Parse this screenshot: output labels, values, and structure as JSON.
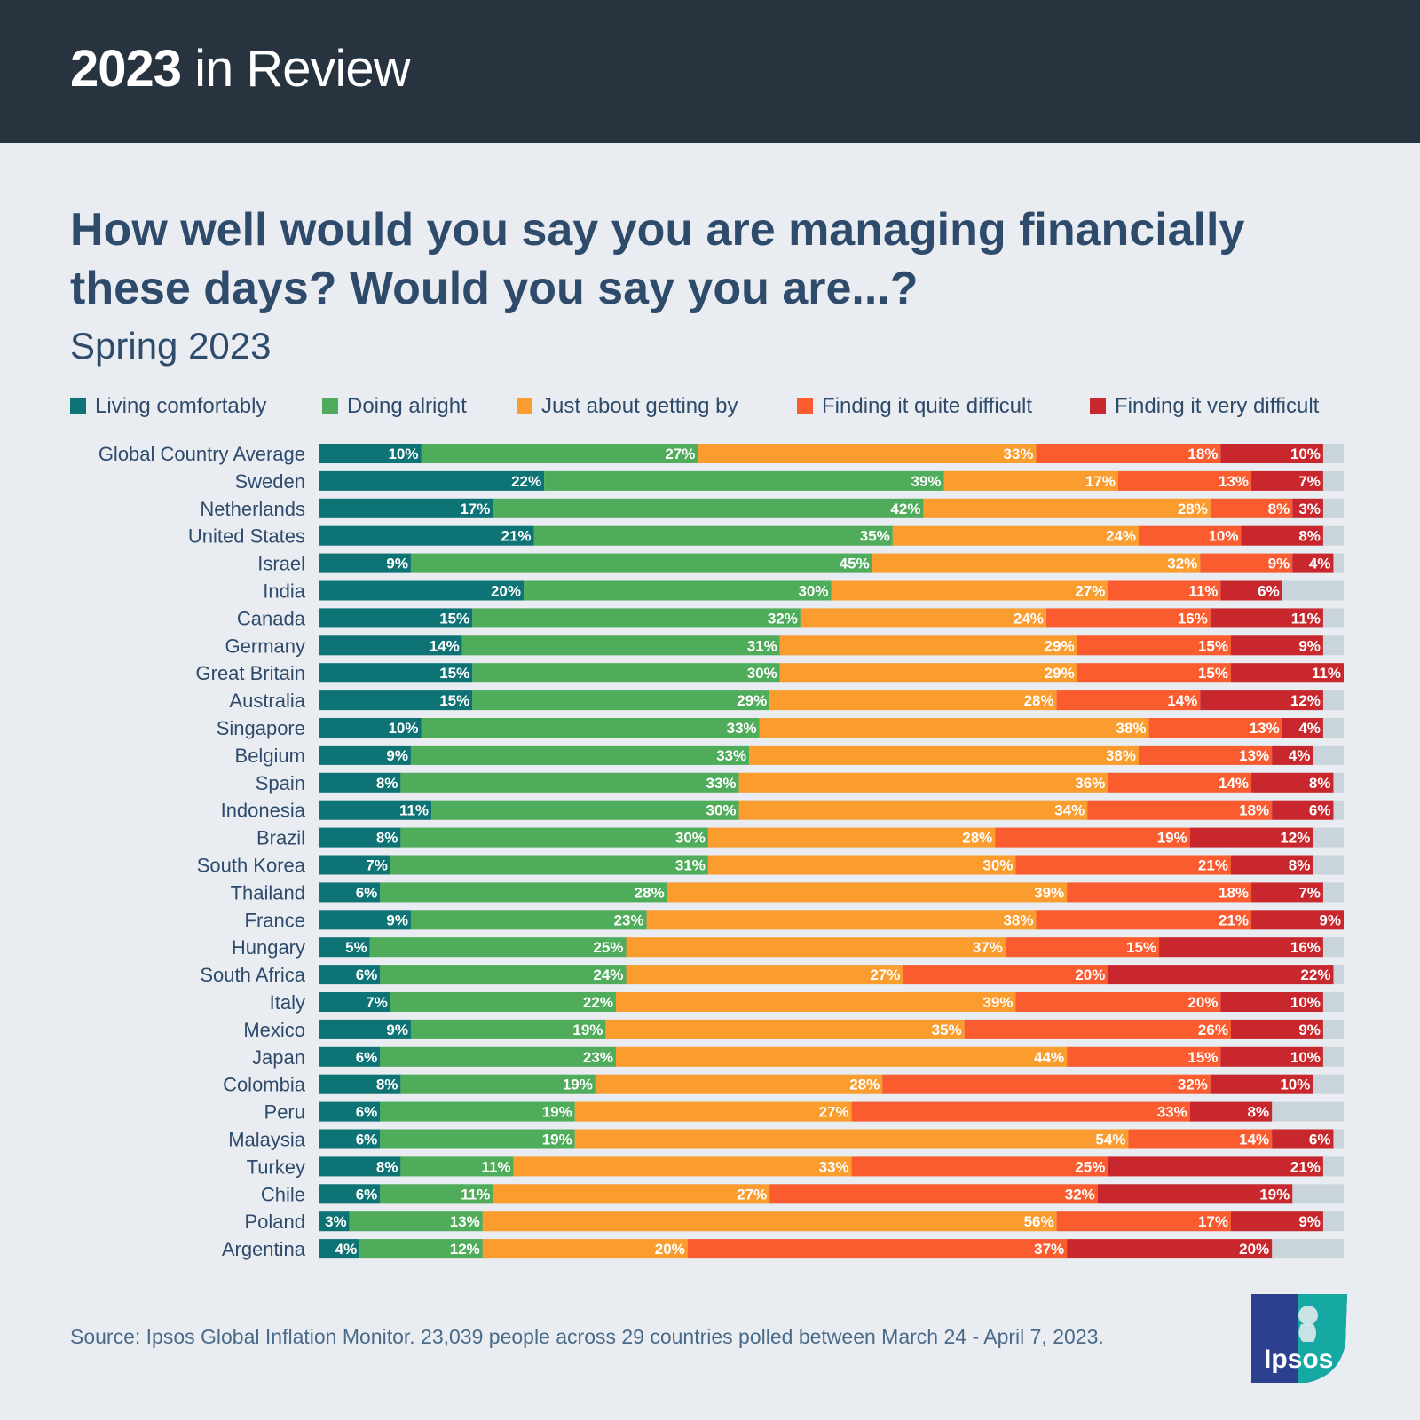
{
  "header": {
    "title_bold": "2023",
    "title_rest": " in Review"
  },
  "question": "How well would you say you are managing financially these days? Would you say you are...?",
  "subtitle": "Spring 2023",
  "source": "Source: Ipsos Global Inflation Monitor. 23,039 people across 29 countries polled between March 24 - April 7, 2023.",
  "logo_text": "Ipsos",
  "colors": {
    "banner_bg": "#283340",
    "page_bg": "#e9edf1",
    "remainder": "#cad4db",
    "text_dark": "#2f4b6c"
  },
  "legend": [
    {
      "label": "Living comfortably",
      "color": "#0e7374"
    },
    {
      "label": "Doing alright",
      "color": "#4fac5b"
    },
    {
      "label": "Just about getting by",
      "color": "#fb9c2f"
    },
    {
      "label": "Finding it quite difficult",
      "color": "#fa5b2f"
    },
    {
      "label": "Finding it very difficult",
      "color": "#c8282d"
    }
  ],
  "chart_data": {
    "type": "bar",
    "orientation": "horizontal",
    "stacked": true,
    "unit": "%",
    "xlim": [
      0,
      100
    ],
    "categories": [
      "Global Country Average",
      "Sweden",
      "Netherlands",
      "United States",
      "Israel",
      "India",
      "Canada",
      "Germany",
      "Great Britain",
      "Australia",
      "Singapore",
      "Belgium",
      "Spain",
      "Indonesia",
      "Brazil",
      "South Korea",
      "Thailand",
      "France",
      "Hungary",
      "South Africa",
      "Italy",
      "Mexico",
      "Japan",
      "Colombia",
      "Peru",
      "Malaysia",
      "Turkey",
      "Chile",
      "Poland",
      "Argentina"
    ],
    "series": [
      {
        "name": "Living comfortably",
        "color": "#0e7374",
        "values": [
          10,
          22,
          17,
          21,
          9,
          20,
          15,
          14,
          15,
          15,
          10,
          9,
          8,
          11,
          8,
          7,
          6,
          9,
          5,
          6,
          7,
          9,
          6,
          8,
          6,
          6,
          8,
          6,
          3,
          4
        ]
      },
      {
        "name": "Doing alright",
        "color": "#4fac5b",
        "values": [
          27,
          39,
          42,
          35,
          45,
          30,
          32,
          31,
          30,
          29,
          33,
          33,
          33,
          30,
          30,
          31,
          28,
          23,
          25,
          24,
          22,
          19,
          23,
          19,
          19,
          19,
          11,
          11,
          13,
          12
        ]
      },
      {
        "name": "Just about getting by",
        "color": "#fb9c2f",
        "values": [
          33,
          17,
          28,
          24,
          32,
          27,
          24,
          29,
          29,
          28,
          38,
          38,
          36,
          34,
          28,
          30,
          39,
          38,
          37,
          27,
          39,
          35,
          44,
          28,
          27,
          54,
          33,
          27,
          56,
          20
        ]
      },
      {
        "name": "Finding it quite difficult",
        "color": "#fa5b2f",
        "values": [
          18,
          13,
          8,
          10,
          9,
          11,
          16,
          15,
          15,
          14,
          13,
          13,
          14,
          18,
          19,
          21,
          18,
          21,
          15,
          20,
          20,
          26,
          15,
          32,
          33,
          14,
          25,
          32,
          17,
          37
        ]
      },
      {
        "name": "Finding it very difficult",
        "color": "#c8282d",
        "values": [
          10,
          7,
          3,
          8,
          4,
          6,
          11,
          9,
          11,
          12,
          4,
          4,
          8,
          6,
          12,
          8,
          7,
          9,
          16,
          22,
          10,
          9,
          10,
          10,
          8,
          6,
          21,
          19,
          9,
          20
        ]
      }
    ]
  }
}
